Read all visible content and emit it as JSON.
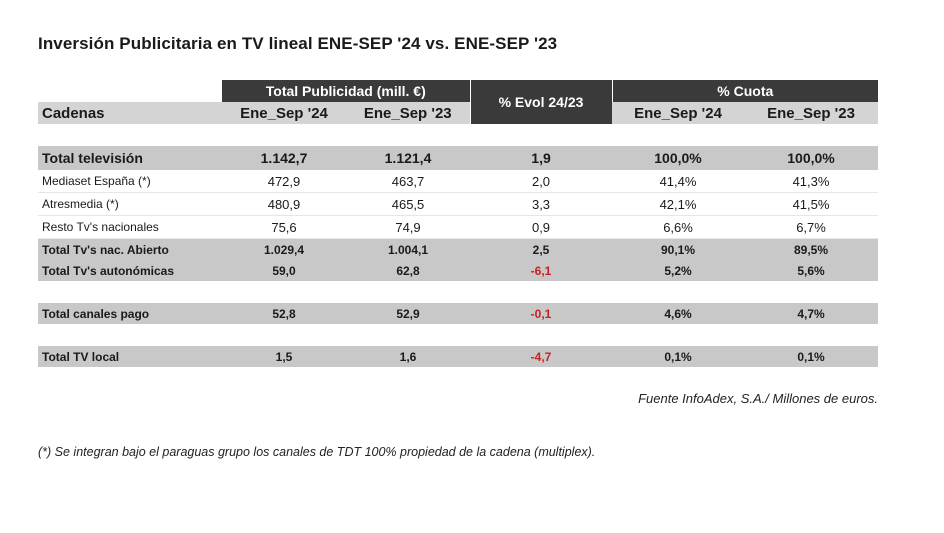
{
  "title": "Inversión Publicitaria en TV lineal ENE-SEP '24 vs. ENE-SEP '23",
  "header": {
    "group_total": "Total Publicidad (mill. €)",
    "group_cuota": "% Cuota",
    "evol": "% Evol 24/23",
    "col_name": "Cadenas",
    "col_24": "Ene_Sep '24",
    "col_23": "Ene_Sep '23",
    "col_cuota_24": "Ene_Sep '24",
    "col_cuota_23": "Ene_Sep '23"
  },
  "rows": [
    {
      "name": "Total televisión",
      "v24": "1.142,7",
      "v23": "1.121,4",
      "evol": "1,9",
      "c24": "100,0%",
      "c23": "100,0%"
    },
    {
      "name": "Mediaset España (*)",
      "v24": "472,9",
      "v23": "463,7",
      "evol": "2,0",
      "c24": "41,4%",
      "c23": "41,3%"
    },
    {
      "name": "Atresmedia (*)",
      "v24": "480,9",
      "v23": "465,5",
      "evol": "3,3",
      "c24": "42,1%",
      "c23": "41,5%"
    },
    {
      "name": "Resto Tv's nacionales",
      "v24": "75,6",
      "v23": "74,9",
      "evol": "0,9",
      "c24": "6,6%",
      "c23": "6,7%"
    },
    {
      "name": "Total Tv's nac. Abierto",
      "v24": "1.029,4",
      "v23": "1.004,1",
      "evol": "2,5",
      "c24": "90,1%",
      "c23": "89,5%"
    },
    {
      "name": "Total Tv's autonómicas",
      "v24": "59,0",
      "v23": "62,8",
      "evol": "-6,1",
      "c24": "5,2%",
      "c23": "5,6%"
    },
    {
      "name": "Total canales pago",
      "v24": "52,8",
      "v23": "52,9",
      "evol": "-0,1",
      "c24": "4,6%",
      "c23": "4,7%"
    },
    {
      "name": "Total TV local",
      "v24": "1,5",
      "v23": "1,6",
      "evol": "-4,7",
      "c24": "0,1%",
      "c23": "0,1%"
    }
  ],
  "source": "Fuente InfoAdex, S.A./ Millones de euros.",
  "footnote": "(*) Se integran bajo el paraguas grupo los canales de TDT 100% propiedad de la cadena (multiplex).",
  "colors": {
    "header_dark": "#3a3a3a",
    "row_grey": "#c8c8c8",
    "negative": "#cc1f1f"
  }
}
